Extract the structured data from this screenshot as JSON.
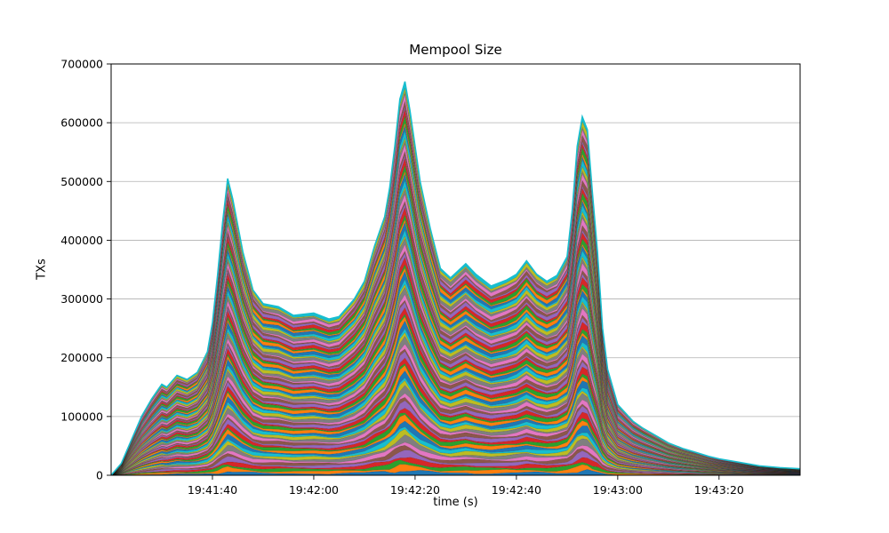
{
  "figure": {
    "title": "Mempool Size",
    "xlabel": "time (s)",
    "ylabel": "TXs"
  },
  "chart_data": {
    "type": "area",
    "stacked": true,
    "title": "Mempool Size",
    "xlabel": "time (s)",
    "ylabel": "TXs",
    "legend": "none",
    "grid": "horizontal",
    "ylim": [
      0,
      700000
    ],
    "y_ticks": [
      {
        "v": 0,
        "label": "0"
      },
      {
        "v": 100000,
        "label": "100000"
      },
      {
        "v": 200000,
        "label": "200000"
      },
      {
        "v": 300000,
        "label": "300000"
      },
      {
        "v": 400000,
        "label": "400000"
      },
      {
        "v": 500000,
        "label": "500000"
      },
      {
        "v": 600000,
        "label": "600000"
      },
      {
        "v": 700000,
        "label": "700000"
      }
    ],
    "x_ticks": [
      {
        "t": 20,
        "label": "19:41:40"
      },
      {
        "t": 40,
        "label": "19:42:00"
      },
      {
        "t": 60,
        "label": "19:42:20"
      },
      {
        "t": 80,
        "label": "19:42:40"
      },
      {
        "t": 100,
        "label": "19:43:00"
      },
      {
        "t": 120,
        "label": "19:43:20"
      }
    ],
    "x_seconds": [
      0,
      2,
      4,
      6,
      8,
      10,
      11,
      13,
      15,
      17,
      19,
      20,
      21,
      22,
      23,
      24,
      26,
      28,
      30,
      33,
      36,
      40,
      43,
      45,
      48,
      50,
      52,
      54,
      55,
      56,
      57,
      58,
      59,
      61,
      63,
      65,
      67,
      70,
      72,
      75,
      78,
      80,
      82,
      84,
      86,
      88,
      90,
      91,
      92,
      93,
      94,
      95,
      96,
      97,
      98,
      100,
      103,
      105,
      108,
      110,
      113,
      115,
      118,
      120,
      124,
      128,
      132,
      136
    ],
    "total": [
      0,
      20000,
      60000,
      100000,
      130000,
      155000,
      150000,
      170000,
      163000,
      175000,
      210000,
      260000,
      340000,
      430000,
      505000,
      470000,
      380000,
      315000,
      292000,
      287000,
      272000,
      276000,
      266000,
      270000,
      300000,
      330000,
      390000,
      440000,
      490000,
      560000,
      640000,
      670000,
      620000,
      500000,
      420000,
      352000,
      336000,
      360000,
      342000,
      322000,
      332000,
      342000,
      365000,
      342000,
      330000,
      340000,
      372000,
      450000,
      560000,
      610000,
      588000,
      480000,
      380000,
      250000,
      180000,
      120000,
      92000,
      80000,
      65000,
      55000,
      45000,
      40000,
      32000,
      28000,
      22000,
      16000,
      13000,
      11000
    ],
    "num_layers": 80,
    "palette": [
      "#1f77b4",
      "#ff7f0e",
      "#2ca02c",
      "#d62728",
      "#9467bd",
      "#8c564b",
      "#e377c2",
      "#7f7f7f",
      "#bcbd22",
      "#17becf"
    ],
    "envelope_color": "#17becf",
    "grid_color": "#b0b0b0"
  }
}
